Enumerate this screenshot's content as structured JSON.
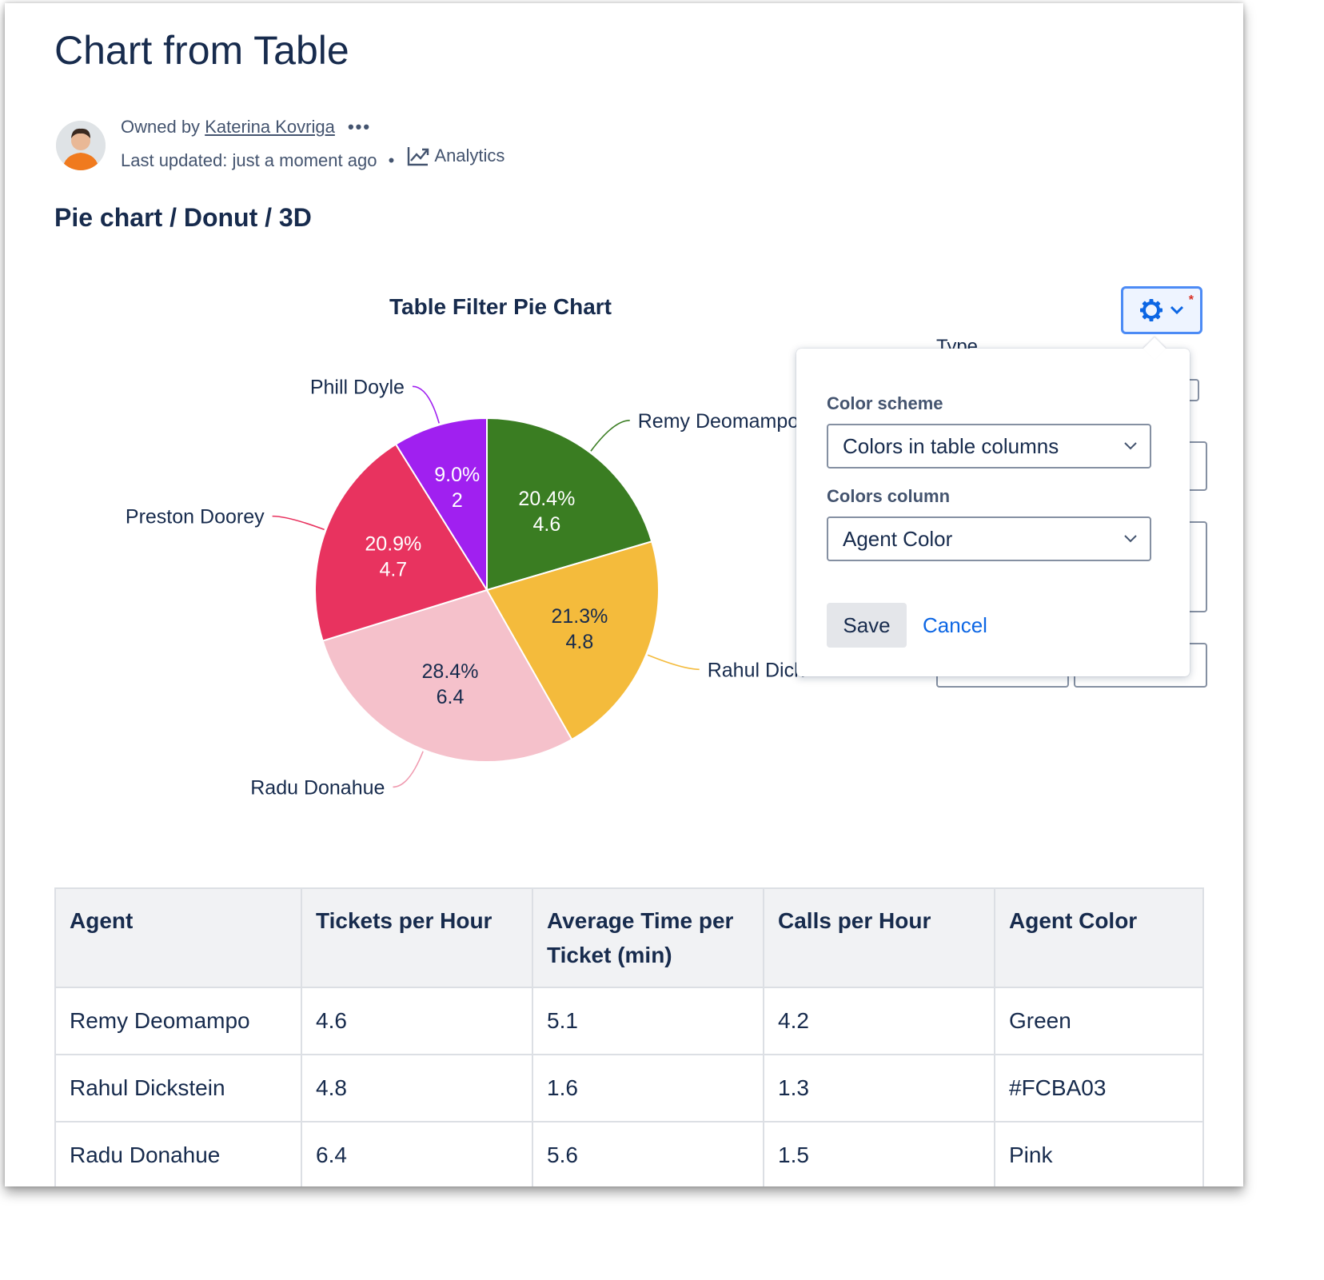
{
  "page": {
    "title": "Chart from Table",
    "owned_by_prefix": "Owned by",
    "owner": "Katerina Kovriga",
    "more": "•••",
    "last_updated": "Last updated: just a moment ago",
    "separator": "•",
    "analytics": "Analytics"
  },
  "section": {
    "title": "Pie chart / Donut / 3D"
  },
  "chart_data": {
    "type": "pie",
    "title": "Table Filter Pie Chart",
    "categories": [
      "Remy Deomampo",
      "Rahul Dickstein",
      "Radu Donahue",
      "Preston Doorey",
      "Phill Doyle"
    ],
    "outer_labels": [
      "Remy Deomampo",
      "Rahul Dick",
      "Radu Donahue",
      "Preston Doorey",
      "Phill Doyle"
    ],
    "values": [
      4.6,
      4.8,
      6.4,
      4.7,
      2
    ],
    "percent_labels": [
      "20.4%",
      "21.3%",
      "28.4%",
      "20.9%",
      "9.0%"
    ],
    "value_labels": [
      "4.6",
      "4.8",
      "6.4",
      "4.7",
      "2"
    ],
    "colors": [
      "#3a7d22",
      "#f4bb3c",
      "#f5c1cb",
      "#e8335f",
      "#a020f0"
    ],
    "inner_text_colors": [
      "#ffffff",
      "#172b4d",
      "#172b4d",
      "#ffffff",
      "#ffffff"
    ]
  },
  "settings_button": {
    "icon": "gear-icon",
    "chevron": "chevron-down-icon",
    "marker": "*"
  },
  "background_controls": {
    "type_label": "Type"
  },
  "popover": {
    "color_scheme_label": "Color scheme",
    "color_scheme_value": "Colors in table columns",
    "colors_column_label": "Colors column",
    "colors_column_value": "Agent Color",
    "save": "Save",
    "cancel": "Cancel"
  },
  "table": {
    "headers": [
      "Agent",
      "Tickets per Hour",
      "Average Time per Ticket (min)",
      "Calls per Hour",
      "Agent Color"
    ],
    "rows": [
      [
        "Remy Deomampo",
        "4.6",
        "5.1",
        "4.2",
        "Green"
      ],
      [
        "Rahul Dickstein",
        "4.8",
        "1.6",
        "1.3",
        "#FCBA03"
      ],
      [
        "Radu Donahue",
        "6.4",
        "5.6",
        "1.5",
        "Pink"
      ]
    ]
  }
}
